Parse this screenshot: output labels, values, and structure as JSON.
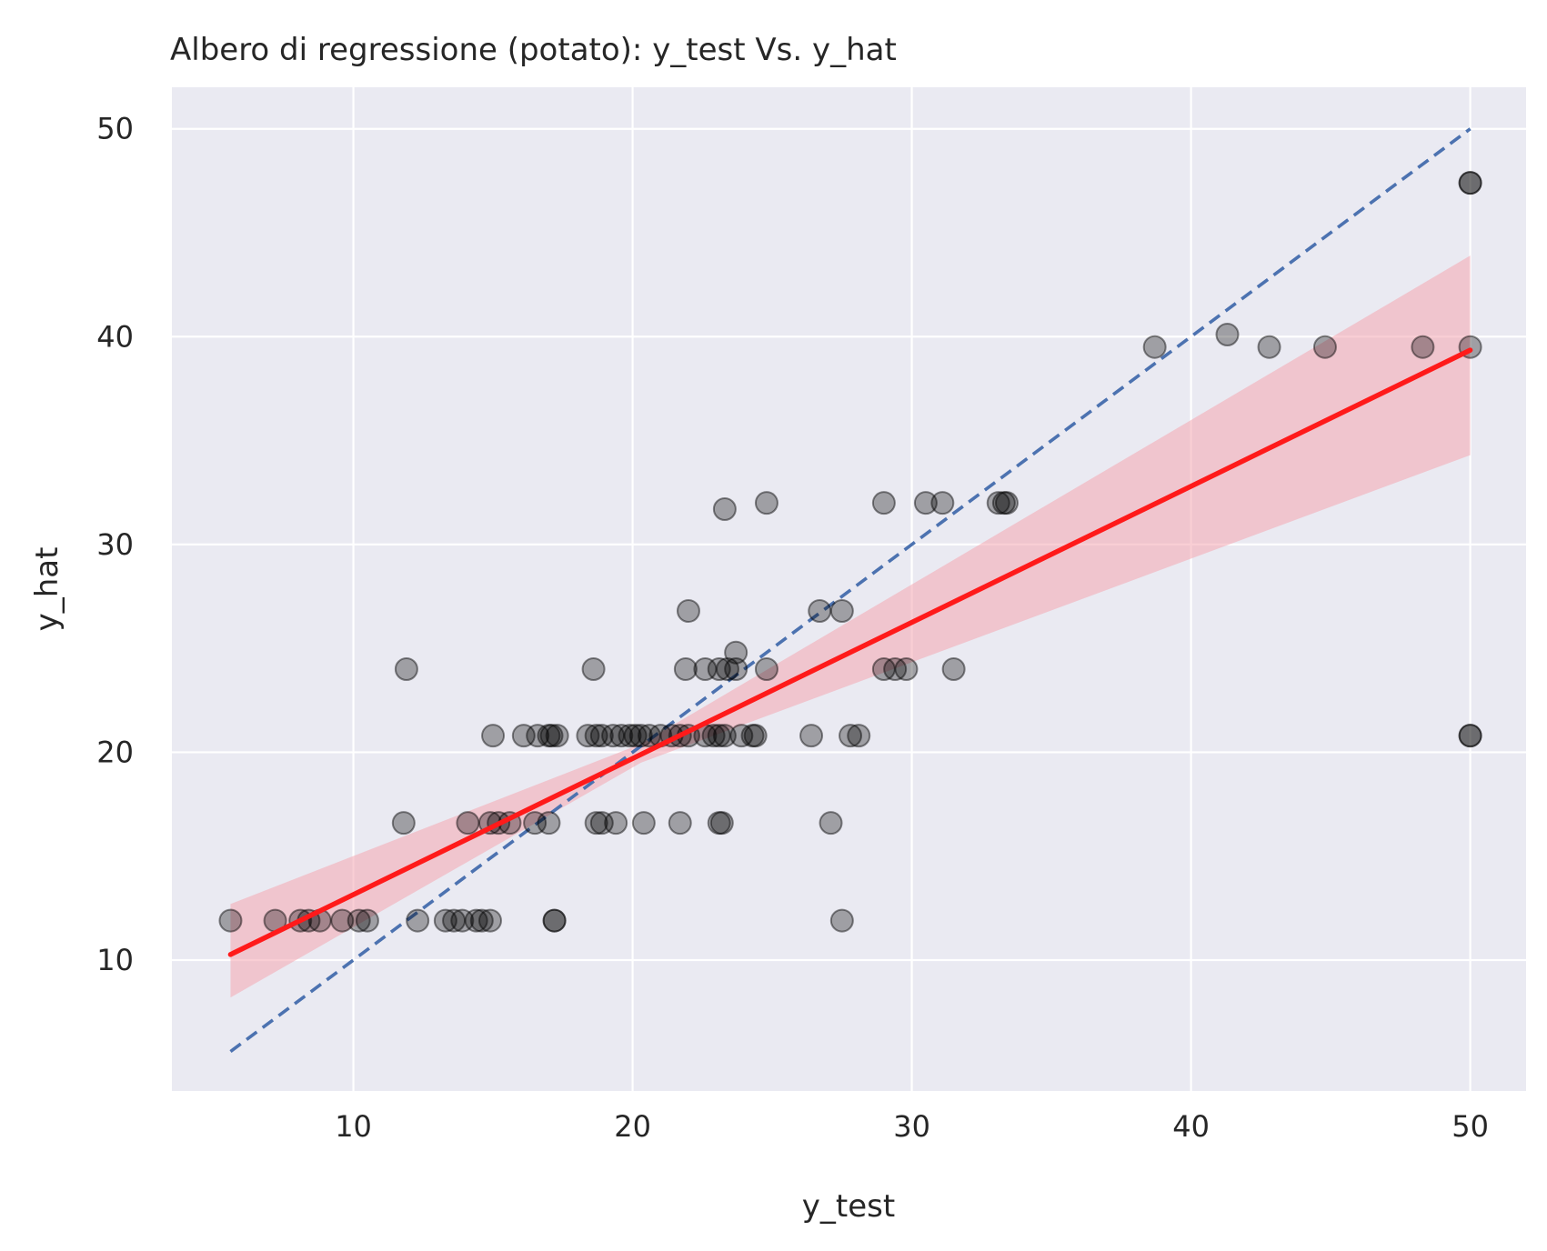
{
  "chart_data": {
    "type": "scatter",
    "title": "Albero di regressione (potato): y_test Vs. y_hat",
    "xlabel": "y_test",
    "ylabel": "y_hat",
    "xlim": [
      3.5,
      52.0
    ],
    "ylim": [
      3.7,
      52.0
    ],
    "xticks": [
      10,
      20,
      30,
      40,
      50
    ],
    "yticks": [
      10,
      20,
      30,
      40,
      50
    ],
    "grid": true,
    "colors": {
      "background": "#eaeaf2",
      "grid": "#ffffff",
      "points": "#000000",
      "regression_line": "#ff1a1a",
      "confidence_band": "#f4a6b0",
      "identity_line": "#4c72b0"
    },
    "points": [
      [
        5.6,
        11.9
      ],
      [
        7.2,
        11.9
      ],
      [
        8.1,
        11.9
      ],
      [
        8.4,
        11.9
      ],
      [
        8.8,
        11.9
      ],
      [
        9.6,
        11.9
      ],
      [
        10.2,
        11.9
      ],
      [
        10.5,
        11.9
      ],
      [
        12.3,
        11.9
      ],
      [
        13.3,
        11.9
      ],
      [
        13.6,
        11.9
      ],
      [
        13.9,
        11.9
      ],
      [
        14.4,
        11.9
      ],
      [
        14.6,
        11.9
      ],
      [
        14.9,
        11.9
      ],
      [
        17.2,
        11.9
      ],
      [
        17.2,
        11.9
      ],
      [
        27.5,
        11.9
      ],
      [
        11.8,
        16.6
      ],
      [
        14.1,
        16.6
      ],
      [
        14.9,
        16.6
      ],
      [
        15.2,
        16.6
      ],
      [
        15.6,
        16.6
      ],
      [
        16.5,
        16.6
      ],
      [
        17.0,
        16.6
      ],
      [
        18.7,
        16.6
      ],
      [
        18.9,
        16.6
      ],
      [
        19.4,
        16.6
      ],
      [
        20.4,
        16.6
      ],
      [
        21.7,
        16.6
      ],
      [
        23.1,
        16.6
      ],
      [
        23.2,
        16.6
      ],
      [
        27.1,
        16.6
      ],
      [
        15.0,
        20.8
      ],
      [
        16.1,
        20.8
      ],
      [
        16.6,
        20.8
      ],
      [
        17.0,
        20.8
      ],
      [
        17.1,
        20.8
      ],
      [
        17.3,
        20.8
      ],
      [
        18.4,
        20.8
      ],
      [
        18.7,
        20.8
      ],
      [
        18.9,
        20.8
      ],
      [
        19.3,
        20.8
      ],
      [
        19.6,
        20.8
      ],
      [
        19.9,
        20.8
      ],
      [
        20.1,
        20.8
      ],
      [
        20.3,
        20.8
      ],
      [
        20.6,
        20.8
      ],
      [
        21.0,
        20.8
      ],
      [
        21.4,
        20.8
      ],
      [
        21.7,
        20.8
      ],
      [
        22.0,
        20.8
      ],
      [
        22.6,
        20.8
      ],
      [
        22.9,
        20.8
      ],
      [
        23.1,
        20.8
      ],
      [
        23.3,
        20.8
      ],
      [
        23.9,
        20.8
      ],
      [
        24.3,
        20.8
      ],
      [
        24.4,
        20.8
      ],
      [
        26.4,
        20.8
      ],
      [
        27.8,
        20.8
      ],
      [
        28.1,
        20.8
      ],
      [
        50.0,
        20.8
      ],
      [
        50.0,
        20.8
      ],
      [
        11.9,
        24.0
      ],
      [
        18.6,
        24.0
      ],
      [
        21.9,
        24.0
      ],
      [
        22.6,
        24.0
      ],
      [
        23.1,
        24.0
      ],
      [
        23.4,
        24.0
      ],
      [
        23.7,
        24.0
      ],
      [
        24.8,
        24.0
      ],
      [
        29.0,
        24.0
      ],
      [
        29.4,
        24.0
      ],
      [
        29.8,
        24.0
      ],
      [
        31.5,
        24.0
      ],
      [
        23.7,
        24.8
      ],
      [
        22.0,
        26.8
      ],
      [
        26.7,
        26.8
      ],
      [
        27.5,
        26.8
      ],
      [
        23.3,
        31.7
      ],
      [
        24.8,
        32.0
      ],
      [
        29.0,
        32.0
      ],
      [
        30.5,
        32.0
      ],
      [
        31.1,
        32.0
      ],
      [
        33.1,
        32.0
      ],
      [
        33.3,
        32.0
      ],
      [
        33.4,
        32.0
      ],
      [
        38.7,
        39.5
      ],
      [
        41.3,
        40.1
      ],
      [
        42.8,
        39.5
      ],
      [
        44.8,
        39.5
      ],
      [
        48.3,
        39.5
      ],
      [
        50.0,
        39.5
      ],
      [
        50.0,
        47.4
      ],
      [
        50.0,
        47.4
      ]
    ],
    "regression": {
      "x_range": [
        5.6,
        50.0
      ],
      "slope": 0.655,
      "intercept": 6.6,
      "band_lower": [
        [
          5.6,
          8.2
        ],
        [
          20.3,
          19.5
        ],
        [
          50.0,
          34.3
        ]
      ],
      "band_upper": [
        [
          5.6,
          12.7
        ],
        [
          20.3,
          20.4
        ],
        [
          50.0,
          43.9
        ]
      ]
    },
    "identity_line": {
      "x_range": [
        5.6,
        50.0
      ],
      "style": "dashed"
    }
  }
}
